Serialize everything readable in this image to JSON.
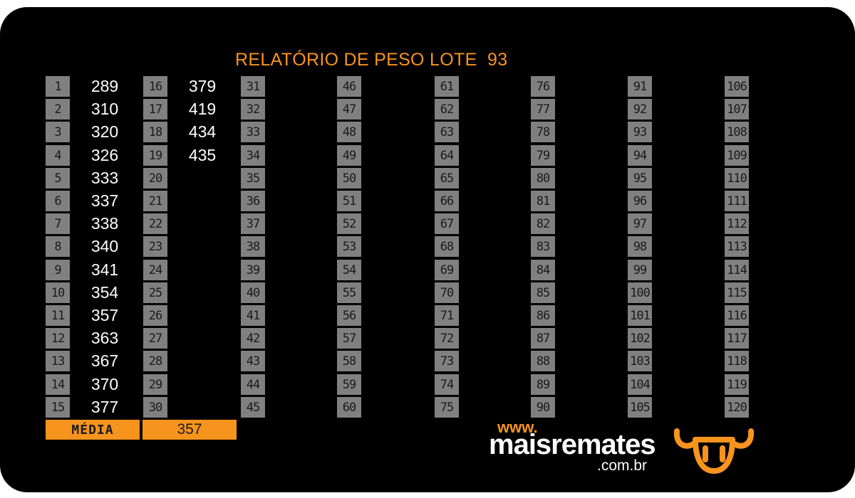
{
  "report": {
    "title": "RELATÓRIO DE PESO LOTE  93",
    "columns": [
      {
        "cells": [
          {
            "num": "1",
            "weight": "289"
          },
          {
            "num": "2",
            "weight": "310"
          },
          {
            "num": "3",
            "weight": "320"
          },
          {
            "num": "4",
            "weight": "326"
          },
          {
            "num": "5",
            "weight": "333"
          },
          {
            "num": "6",
            "weight": "337"
          },
          {
            "num": "7",
            "weight": "338"
          },
          {
            "num": "8",
            "weight": "340"
          },
          {
            "num": "9",
            "weight": "341"
          },
          {
            "num": "10",
            "weight": "354"
          },
          {
            "num": "11",
            "weight": "357"
          },
          {
            "num": "12",
            "weight": "363"
          },
          {
            "num": "13",
            "weight": "367"
          },
          {
            "num": "14",
            "weight": "370"
          },
          {
            "num": "15",
            "weight": "377"
          }
        ]
      },
      {
        "cells": [
          {
            "num": "16",
            "weight": "379"
          },
          {
            "num": "17",
            "weight": "419"
          },
          {
            "num": "18",
            "weight": "434"
          },
          {
            "num": "19",
            "weight": "435"
          },
          {
            "num": "20",
            "weight": ""
          },
          {
            "num": "21",
            "weight": ""
          },
          {
            "num": "22",
            "weight": ""
          },
          {
            "num": "23",
            "weight": ""
          },
          {
            "num": "24",
            "weight": ""
          },
          {
            "num": "25",
            "weight": ""
          },
          {
            "num": "26",
            "weight": ""
          },
          {
            "num": "27",
            "weight": ""
          },
          {
            "num": "28",
            "weight": ""
          },
          {
            "num": "29",
            "weight": ""
          },
          {
            "num": "30",
            "weight": ""
          }
        ]
      },
      {
        "cells": [
          {
            "num": "31",
            "weight": ""
          },
          {
            "num": "32",
            "weight": ""
          },
          {
            "num": "33",
            "weight": ""
          },
          {
            "num": "34",
            "weight": ""
          },
          {
            "num": "35",
            "weight": ""
          },
          {
            "num": "36",
            "weight": ""
          },
          {
            "num": "37",
            "weight": ""
          },
          {
            "num": "38",
            "weight": ""
          },
          {
            "num": "39",
            "weight": ""
          },
          {
            "num": "40",
            "weight": ""
          },
          {
            "num": "41",
            "weight": ""
          },
          {
            "num": "42",
            "weight": ""
          },
          {
            "num": "43",
            "weight": ""
          },
          {
            "num": "44",
            "weight": ""
          },
          {
            "num": "45",
            "weight": ""
          }
        ]
      },
      {
        "cells": [
          {
            "num": "46",
            "weight": ""
          },
          {
            "num": "47",
            "weight": ""
          },
          {
            "num": "48",
            "weight": ""
          },
          {
            "num": "49",
            "weight": ""
          },
          {
            "num": "50",
            "weight": ""
          },
          {
            "num": "51",
            "weight": ""
          },
          {
            "num": "52",
            "weight": ""
          },
          {
            "num": "53",
            "weight": ""
          },
          {
            "num": "54",
            "weight": ""
          },
          {
            "num": "55",
            "weight": ""
          },
          {
            "num": "56",
            "weight": ""
          },
          {
            "num": "57",
            "weight": ""
          },
          {
            "num": "58",
            "weight": ""
          },
          {
            "num": "59",
            "weight": ""
          },
          {
            "num": "60",
            "weight": ""
          }
        ]
      },
      {
        "cells": [
          {
            "num": "61",
            "weight": ""
          },
          {
            "num": "62",
            "weight": ""
          },
          {
            "num": "63",
            "weight": ""
          },
          {
            "num": "64",
            "weight": ""
          },
          {
            "num": "65",
            "weight": ""
          },
          {
            "num": "66",
            "weight": ""
          },
          {
            "num": "67",
            "weight": ""
          },
          {
            "num": "68",
            "weight": ""
          },
          {
            "num": "69",
            "weight": ""
          },
          {
            "num": "70",
            "weight": ""
          },
          {
            "num": "71",
            "weight": ""
          },
          {
            "num": "72",
            "weight": ""
          },
          {
            "num": "73",
            "weight": ""
          },
          {
            "num": "74",
            "weight": ""
          },
          {
            "num": "75",
            "weight": ""
          }
        ]
      },
      {
        "cells": [
          {
            "num": "76",
            "weight": ""
          },
          {
            "num": "77",
            "weight": ""
          },
          {
            "num": "78",
            "weight": ""
          },
          {
            "num": "79",
            "weight": ""
          },
          {
            "num": "80",
            "weight": ""
          },
          {
            "num": "81",
            "weight": ""
          },
          {
            "num": "82",
            "weight": ""
          },
          {
            "num": "83",
            "weight": ""
          },
          {
            "num": "84",
            "weight": ""
          },
          {
            "num": "85",
            "weight": ""
          },
          {
            "num": "86",
            "weight": ""
          },
          {
            "num": "87",
            "weight": ""
          },
          {
            "num": "88",
            "weight": ""
          },
          {
            "num": "89",
            "weight": ""
          },
          {
            "num": "90",
            "weight": ""
          }
        ]
      },
      {
        "cells": [
          {
            "num": "91",
            "weight": ""
          },
          {
            "num": "92",
            "weight": ""
          },
          {
            "num": "93",
            "weight": ""
          },
          {
            "num": "94",
            "weight": ""
          },
          {
            "num": "95",
            "weight": ""
          },
          {
            "num": "96",
            "weight": ""
          },
          {
            "num": "97",
            "weight": ""
          },
          {
            "num": "98",
            "weight": ""
          },
          {
            "num": "99",
            "weight": ""
          },
          {
            "num": "100",
            "weight": ""
          },
          {
            "num": "101",
            "weight": ""
          },
          {
            "num": "102",
            "weight": ""
          },
          {
            "num": "103",
            "weight": ""
          },
          {
            "num": "104",
            "weight": ""
          },
          {
            "num": "105",
            "weight": ""
          }
        ]
      },
      {
        "cells": [
          {
            "num": "106",
            "weight": ""
          },
          {
            "num": "107",
            "weight": ""
          },
          {
            "num": "108",
            "weight": ""
          },
          {
            "num": "109",
            "weight": ""
          },
          {
            "num": "110",
            "weight": ""
          },
          {
            "num": "111",
            "weight": ""
          },
          {
            "num": "112",
            "weight": ""
          },
          {
            "num": "113",
            "weight": ""
          },
          {
            "num": "114",
            "weight": ""
          },
          {
            "num": "115",
            "weight": ""
          },
          {
            "num": "116",
            "weight": ""
          },
          {
            "num": "117",
            "weight": ""
          },
          {
            "num": "118",
            "weight": ""
          },
          {
            "num": "119",
            "weight": ""
          },
          {
            "num": "120",
            "weight": ""
          }
        ]
      }
    ],
    "average": {
      "label": "MÉDIA",
      "value": "357"
    }
  },
  "brand": {
    "www": "www.",
    "name": "maisremates",
    "tld": ".com.br",
    "logo_icon": "bull-head-icon"
  },
  "colors": {
    "accent": "#f7941d",
    "background": "#000000",
    "number_box": "#808080",
    "weight_text": "#ffffff"
  }
}
